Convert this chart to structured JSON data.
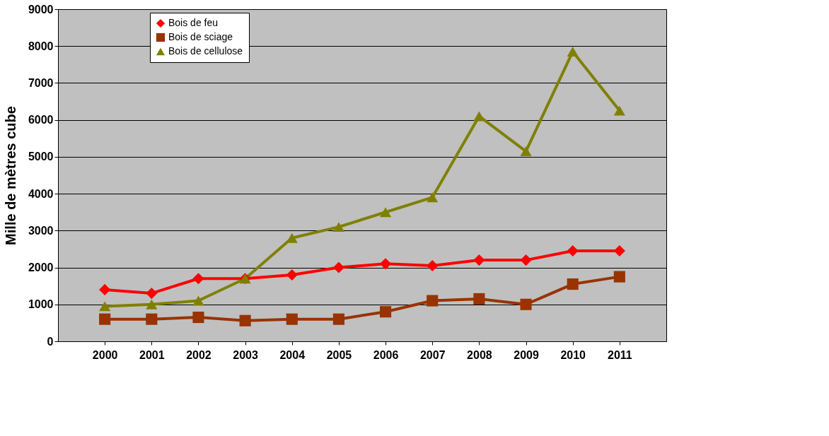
{
  "chart_data": {
    "type": "line",
    "ylabel": "Mille de mètres cube",
    "categories": [
      "2000",
      "2001",
      "2002",
      "2003",
      "2004",
      "2005",
      "2006",
      "2007",
      "2008",
      "2009",
      "2010",
      "2011"
    ],
    "series": [
      {
        "name": "Bois de feu",
        "color": "#ff0000",
        "marker": "diamond",
        "values": [
          1400,
          1300,
          1700,
          1700,
          1800,
          2000,
          2100,
          2050,
          2200,
          2200,
          2450,
          2450
        ]
      },
      {
        "name": "Bois de sciage",
        "color": "#993300",
        "marker": "square",
        "values": [
          600,
          600,
          650,
          560,
          600,
          600,
          800,
          1100,
          1150,
          1000,
          1550,
          1750
        ]
      },
      {
        "name": "Bois de cellulose",
        "color": "#808000",
        "marker": "triangle",
        "values": [
          950,
          1000,
          1100,
          1700,
          2800,
          3100,
          3500,
          3900,
          6100,
          5150,
          7850,
          6250
        ]
      }
    ],
    "ylim": [
      0,
      9000
    ],
    "yticks": [
      0,
      1000,
      2000,
      3000,
      4000,
      5000,
      6000,
      7000,
      8000,
      9000
    ],
    "grid": "y",
    "legend": "top left",
    "line_style": "solid"
  }
}
